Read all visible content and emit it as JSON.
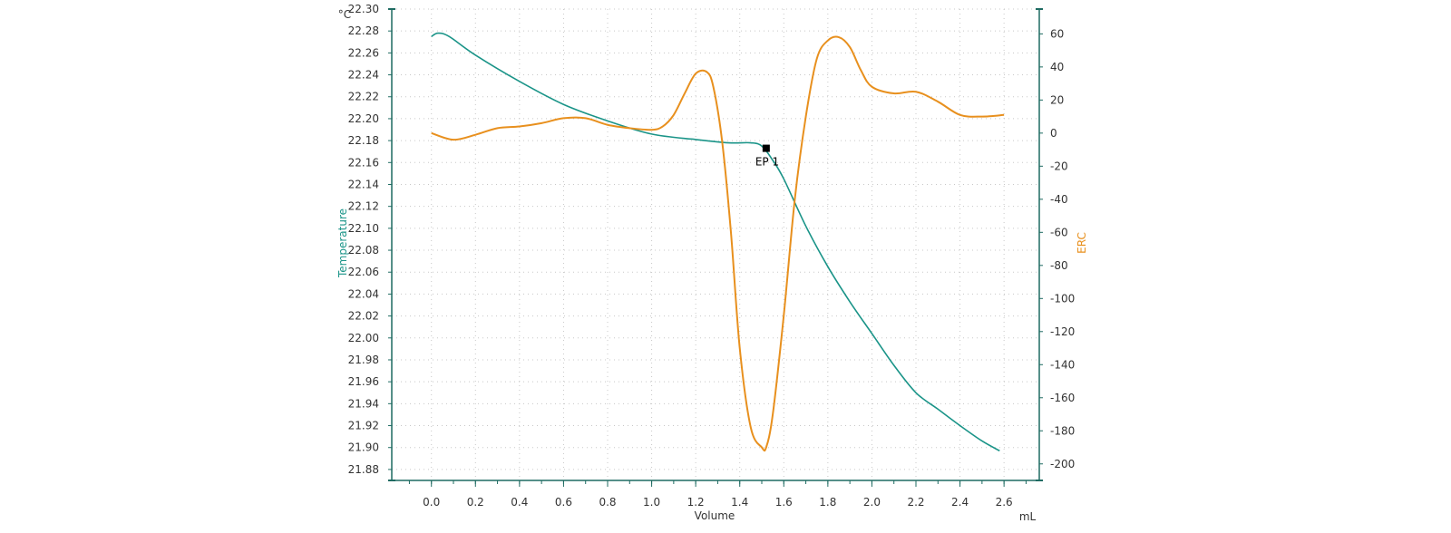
{
  "chart_data": {
    "type": "line",
    "title": "",
    "xlabel": "Volume",
    "xunit": "mL",
    "y1label": "Temperature",
    "y1unit": "°C",
    "y2label": "ERC",
    "xlim": [
      -0.18,
      2.76
    ],
    "y1lim": [
      21.87,
      22.3
    ],
    "y2lim": [
      -210,
      75
    ],
    "xticks": [
      0.0,
      0.2,
      0.4,
      0.6,
      0.8,
      1.0,
      1.2,
      1.4,
      1.6,
      1.8,
      2.0,
      2.2,
      2.4,
      2.6
    ],
    "y1ticks": [
      21.88,
      21.9,
      21.92,
      21.94,
      21.96,
      21.98,
      22.0,
      22.02,
      22.04,
      22.06,
      22.08,
      22.1,
      22.12,
      22.14,
      22.16,
      22.18,
      22.2,
      22.22,
      22.24,
      22.26,
      22.28,
      22.3
    ],
    "y2ticks": [
      60,
      40,
      20,
      0,
      -20,
      -40,
      -60,
      -80,
      -100,
      -120,
      -140,
      -160,
      -180,
      -200
    ],
    "grid": true,
    "colors": {
      "temperature": "#1a9488",
      "erc": "#e8901e",
      "axis": "#1f6b62"
    },
    "series": [
      {
        "name": "Temperature",
        "axis": "left",
        "x": [
          0.0,
          0.03,
          0.08,
          0.2,
          0.4,
          0.6,
          0.8,
          1.0,
          1.2,
          1.35,
          1.45,
          1.5,
          1.55,
          1.6,
          1.7,
          1.8,
          1.9,
          2.0,
          2.1,
          2.2,
          2.3,
          2.4,
          2.5,
          2.58
        ],
        "values": [
          22.275,
          22.278,
          22.275,
          22.258,
          22.234,
          22.213,
          22.198,
          22.186,
          22.181,
          22.178,
          22.178,
          22.175,
          22.162,
          22.145,
          22.102,
          22.065,
          22.033,
          22.004,
          21.975,
          21.95,
          21.935,
          21.92,
          21.906,
          21.897
        ]
      },
      {
        "name": "ERC",
        "axis": "right",
        "x": [
          0.0,
          0.1,
          0.2,
          0.3,
          0.4,
          0.5,
          0.6,
          0.7,
          0.8,
          0.9,
          1.0,
          1.05,
          1.1,
          1.15,
          1.2,
          1.25,
          1.28,
          1.32,
          1.36,
          1.4,
          1.45,
          1.5,
          1.52,
          1.55,
          1.6,
          1.65,
          1.7,
          1.75,
          1.8,
          1.85,
          1.9,
          1.95,
          2.0,
          2.1,
          2.2,
          2.3,
          2.4,
          2.5,
          2.6
        ],
        "values": [
          0,
          -4,
          -1,
          3,
          4,
          6,
          9,
          9,
          5,
          3,
          2,
          4,
          11,
          24,
          36,
          37,
          28,
          -5,
          -60,
          -130,
          -178,
          -190,
          -190,
          -170,
          -110,
          -40,
          10,
          45,
          56,
          58,
          52,
          38,
          28,
          24,
          25,
          19,
          11,
          10,
          11
        ]
      }
    ],
    "annotations": [
      {
        "label": "EP 1",
        "x": 1.52,
        "y": 22.173
      }
    ]
  }
}
